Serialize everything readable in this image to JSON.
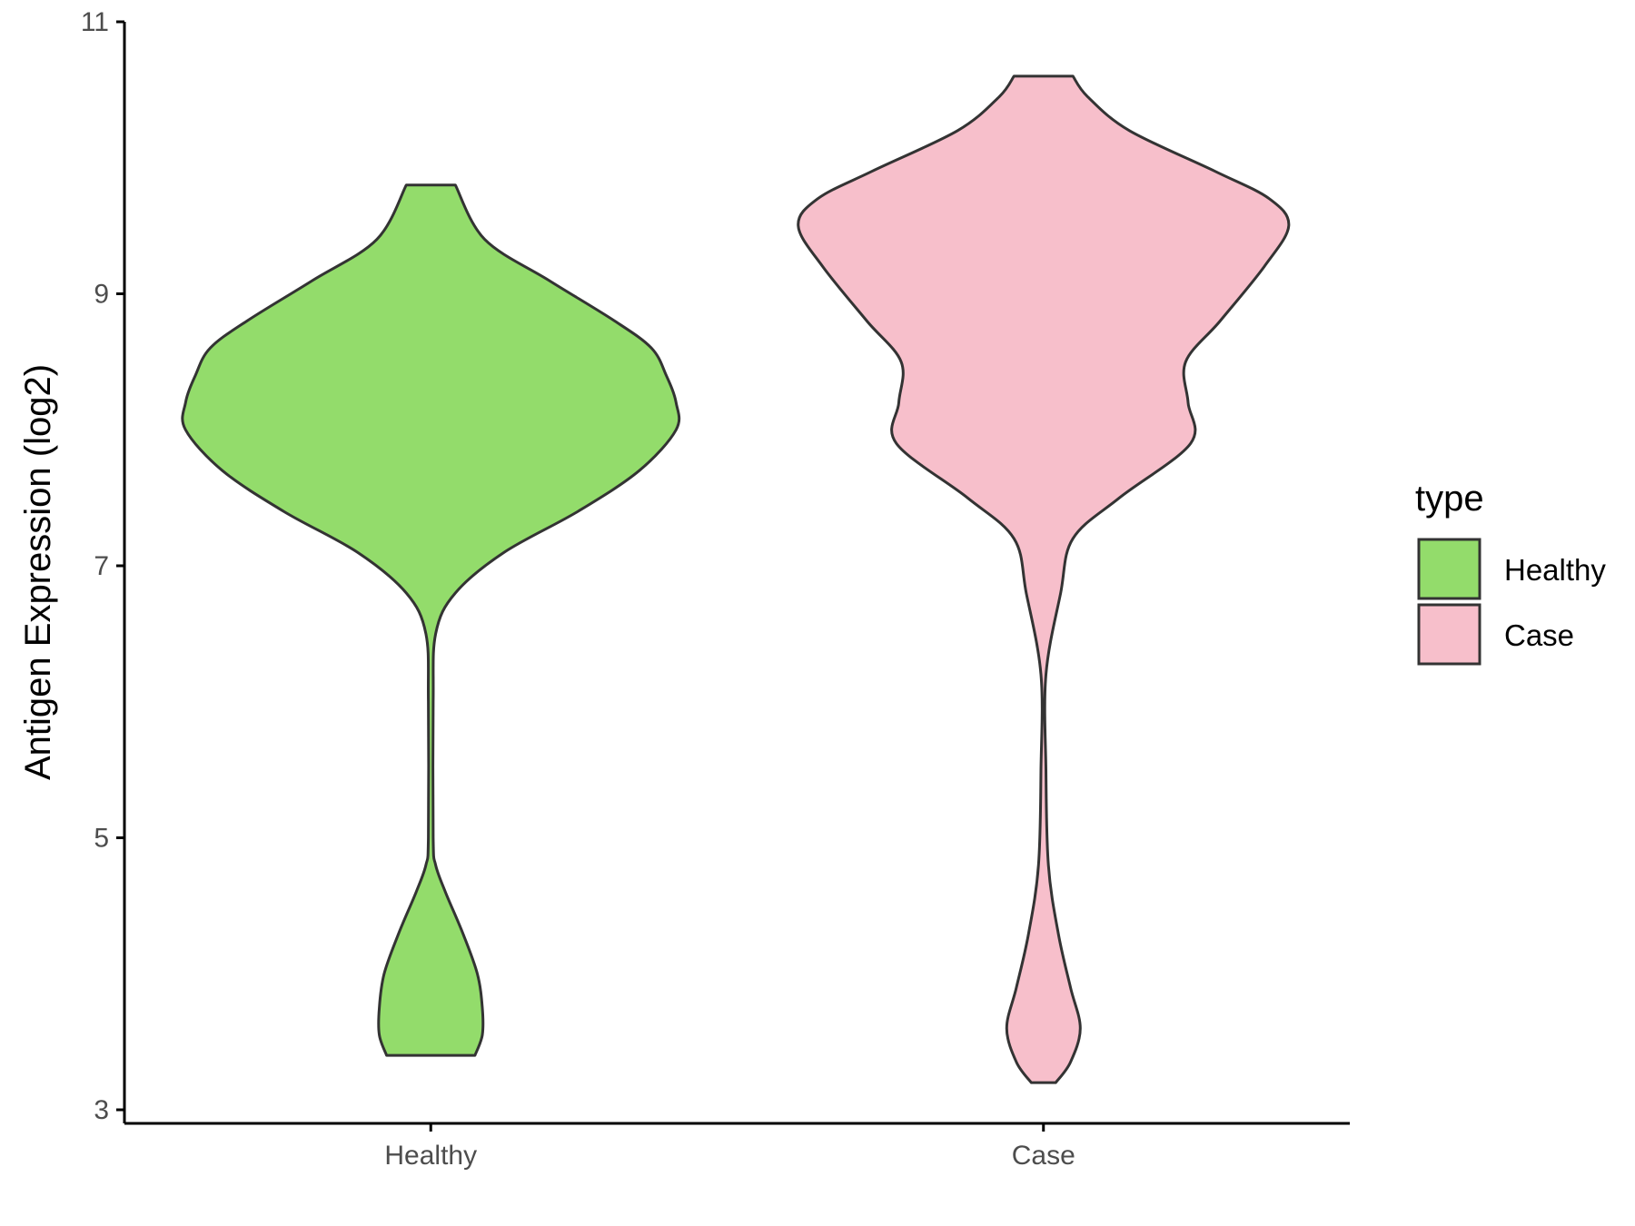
{
  "chart_data": {
    "type": "violin",
    "xlabel": "",
    "ylabel": "Antigen Expression (log2)",
    "ylim": [
      2.9,
      11.0
    ],
    "yticks": [
      "3",
      "5",
      "7",
      "9",
      "11"
    ],
    "categories": [
      "Healthy",
      "Case"
    ],
    "grid": false,
    "legend": {
      "title": "type",
      "position": "right",
      "entries": [
        "Healthy",
        "Case"
      ]
    },
    "series": [
      {
        "category": "Healthy",
        "color": "#93DC6B",
        "y_min": 3.4,
        "y_max": 9.8,
        "density_profile": [
          [
            3.4,
            0.18
          ],
          [
            3.55,
            0.21
          ],
          [
            3.75,
            0.21
          ],
          [
            4.0,
            0.19
          ],
          [
            4.3,
            0.13
          ],
          [
            4.6,
            0.06
          ],
          [
            4.8,
            0.02
          ],
          [
            5.0,
            0.01
          ],
          [
            6.0,
            0.01
          ],
          [
            6.5,
            0.02
          ],
          [
            6.8,
            0.1
          ],
          [
            7.1,
            0.3
          ],
          [
            7.4,
            0.6
          ],
          [
            7.7,
            0.85
          ],
          [
            8.0,
            1.0
          ],
          [
            8.2,
            1.0
          ],
          [
            8.4,
            0.96
          ],
          [
            8.6,
            0.9
          ],
          [
            8.8,
            0.75
          ],
          [
            9.1,
            0.48
          ],
          [
            9.4,
            0.22
          ],
          [
            9.8,
            0.1
          ]
        ]
      },
      {
        "category": "Case",
        "color": "#F7BFCB",
        "y_min": 3.2,
        "y_max": 10.6,
        "density_profile": [
          [
            3.2,
            0.05
          ],
          [
            3.35,
            0.11
          ],
          [
            3.6,
            0.15
          ],
          [
            3.9,
            0.11
          ],
          [
            4.3,
            0.06
          ],
          [
            4.8,
            0.02
          ],
          [
            5.5,
            0.01
          ],
          [
            6.2,
            0.01
          ],
          [
            6.8,
            0.07
          ],
          [
            7.2,
            0.12
          ],
          [
            7.5,
            0.31
          ],
          [
            7.9,
            0.6
          ],
          [
            8.2,
            0.59
          ],
          [
            8.5,
            0.58
          ],
          [
            8.8,
            0.72
          ],
          [
            9.2,
            0.9
          ],
          [
            9.5,
            1.0
          ],
          [
            9.7,
            0.92
          ],
          [
            9.9,
            0.7
          ],
          [
            10.2,
            0.35
          ],
          [
            10.45,
            0.18
          ],
          [
            10.6,
            0.12
          ]
        ]
      }
    ]
  }
}
